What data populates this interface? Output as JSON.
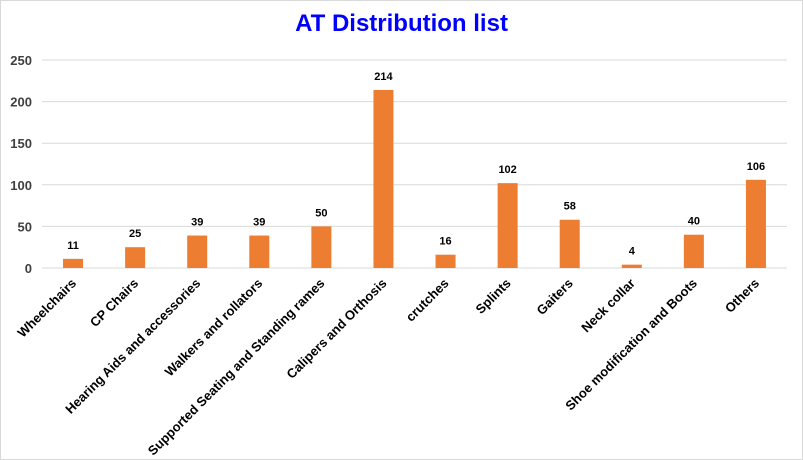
{
  "chart_data": {
    "type": "bar",
    "title": "AT Distribution list",
    "categories": [
      "Wheelchairs",
      "CP Chairs",
      "Hearing Aids and accessories",
      "Walkers and rollators",
      "Supported Seating and Standing rames",
      "Calipers and Orthosis",
      "crutches",
      "Splints",
      "Gaiters",
      "Neck collar",
      "Shoe modification and Boots",
      "Others"
    ],
    "values": [
      11,
      25,
      39,
      39,
      50,
      214,
      16,
      102,
      58,
      4,
      40,
      106
    ],
    "ylim": [
      0,
      250
    ],
    "yticks": [
      0,
      50,
      100,
      150,
      200,
      250
    ],
    "grid": true,
    "legend": "none",
    "bar_color": "#ed7d31",
    "grid_color": "#d9d9d9",
    "title_color": "#0000ff"
  }
}
